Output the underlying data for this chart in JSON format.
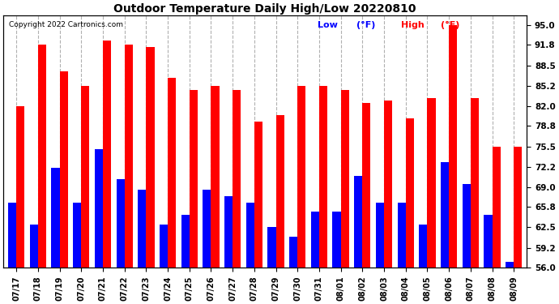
{
  "title": "Outdoor Temperature Daily High/Low 20220810",
  "copyright": "Copyright 2022 Cartronics.com",
  "legend_low": "Low",
  "legend_high": "High",
  "legend_unit": "(°F)",
  "dates": [
    "07/17",
    "07/18",
    "07/19",
    "07/20",
    "07/21",
    "07/22",
    "07/23",
    "07/24",
    "07/25",
    "07/26",
    "07/27",
    "07/28",
    "07/29",
    "07/30",
    "07/31",
    "08/01",
    "08/02",
    "08/03",
    "08/04",
    "08/05",
    "08/06",
    "08/07",
    "08/08",
    "08/09"
  ],
  "highs": [
    82.0,
    91.8,
    87.5,
    85.2,
    92.5,
    91.8,
    91.5,
    86.5,
    84.5,
    85.2,
    84.5,
    79.5,
    80.5,
    85.2,
    85.2,
    84.5,
    82.5,
    82.9,
    80.0,
    83.2,
    95.0,
    83.2,
    75.5,
    75.5
  ],
  "lows": [
    66.5,
    63.0,
    72.0,
    66.5,
    75.0,
    70.2,
    68.5,
    63.0,
    64.5,
    68.5,
    67.5,
    66.5,
    62.5,
    61.0,
    65.0,
    65.0,
    70.8,
    66.5,
    66.5,
    63.0,
    73.0,
    69.5,
    64.5,
    57.0
  ],
  "bar_color_high": "#ff0000",
  "bar_color_low": "#0000ff",
  "background_color": "#ffffff",
  "grid_color": "#b0b0b0",
  "title_color": "#000000",
  "copyright_color": "#000000",
  "legend_low_color": "#0000ff",
  "legend_high_color": "#ff0000",
  "ymin": 56.0,
  "ymax": 96.5,
  "yticks": [
    56.0,
    59.2,
    62.5,
    65.8,
    69.0,
    72.2,
    75.5,
    78.8,
    82.0,
    85.2,
    88.5,
    91.8,
    95.0
  ],
  "bar_width": 0.38
}
